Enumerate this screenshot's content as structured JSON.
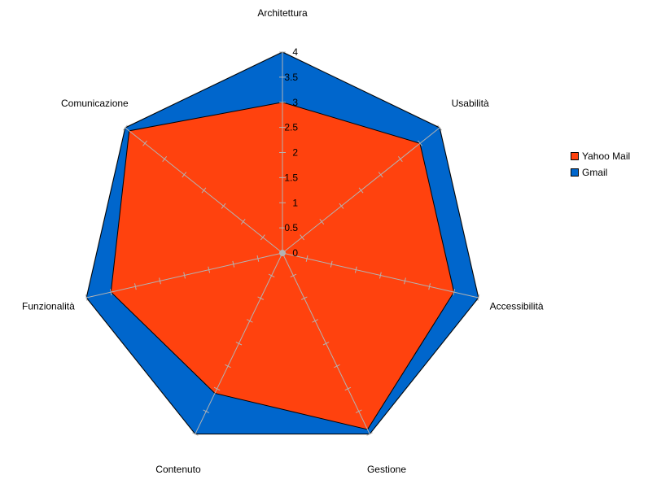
{
  "chart_data": {
    "type": "radar",
    "axes": [
      "Architettura",
      "Usabilità",
      "Accessibilità",
      "Gestione",
      "Contenuto",
      "Funzionalità",
      "Comunicazione"
    ],
    "ticks": [
      "0",
      "0.5",
      "1",
      "1.5",
      "2",
      "2.5",
      "3",
      "3.5",
      "4"
    ],
    "rmax": 4,
    "series": [
      {
        "name": "Gmail",
        "color": "#0066cc",
        "values": [
          4,
          4,
          4,
          4,
          4,
          4,
          4
        ]
      },
      {
        "name": "Yahoo Mail",
        "color": "#ff420e",
        "values": [
          3,
          3.5,
          3.5,
          3.9,
          3.1,
          3.5,
          3.9
        ]
      }
    ],
    "legend": [
      "Yahoo Mail",
      "Gmail"
    ],
    "legend_position": "right"
  }
}
